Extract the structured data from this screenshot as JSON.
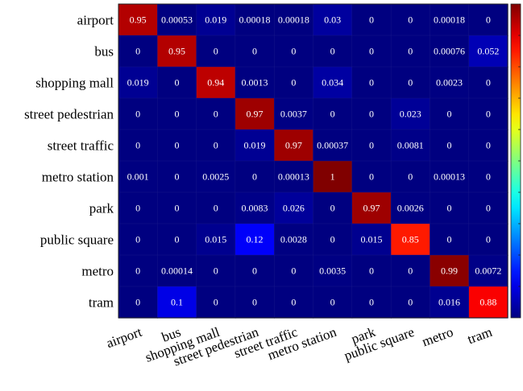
{
  "chart_data": {
    "type": "heatmap",
    "title": "",
    "xlabel": "",
    "ylabel": "",
    "colormap": "jet",
    "color_range": [
      0,
      1
    ],
    "colorbar": "right",
    "rows": [
      "airport",
      "bus",
      "shopping mall",
      "street pedestrian",
      "street traffic",
      "metro station",
      "park",
      "public square",
      "metro",
      "tram"
    ],
    "cols": [
      "airport",
      "bus",
      "shopping mall",
      "street pedestrian",
      "street traffic",
      "metro station",
      "park",
      "public square",
      "metro",
      "tram"
    ],
    "values": [
      [
        "0.95",
        "0.00053",
        "0.019",
        "0.00018",
        "0.00018",
        "0.03",
        "0",
        "0",
        "0.00018",
        "0"
      ],
      [
        "0",
        "0.95",
        "0",
        "0",
        "0",
        "0",
        "0",
        "0",
        "0.00076",
        "0.052"
      ],
      [
        "0.019",
        "0",
        "0.94",
        "0.0013",
        "0",
        "0.034",
        "0",
        "0",
        "0.0023",
        "0"
      ],
      [
        "0",
        "0",
        "0",
        "0.97",
        "0.0037",
        "0",
        "0",
        "0.023",
        "0",
        "0"
      ],
      [
        "0",
        "0",
        "0",
        "0.019",
        "0.97",
        "0.00037",
        "0",
        "0.0081",
        "0",
        "0"
      ],
      [
        "0.001",
        "0",
        "0.0025",
        "0",
        "0.00013",
        "1",
        "0",
        "0",
        "0.00013",
        "0"
      ],
      [
        "0",
        "0",
        "0",
        "0.0083",
        "0.026",
        "0",
        "0.97",
        "0.0026",
        "0",
        "0"
      ],
      [
        "0",
        "0",
        "0.015",
        "0.12",
        "0.0028",
        "0",
        "0.015",
        "0.85",
        "0",
        "0"
      ],
      [
        "0",
        "0.00014",
        "0",
        "0",
        "0",
        "0.0035",
        "0",
        "0",
        "0.99",
        "0.0072"
      ],
      [
        "0",
        "0.1",
        "0",
        "0",
        "0",
        "0",
        "0",
        "0",
        "0.016",
        "0.88"
      ]
    ]
  }
}
